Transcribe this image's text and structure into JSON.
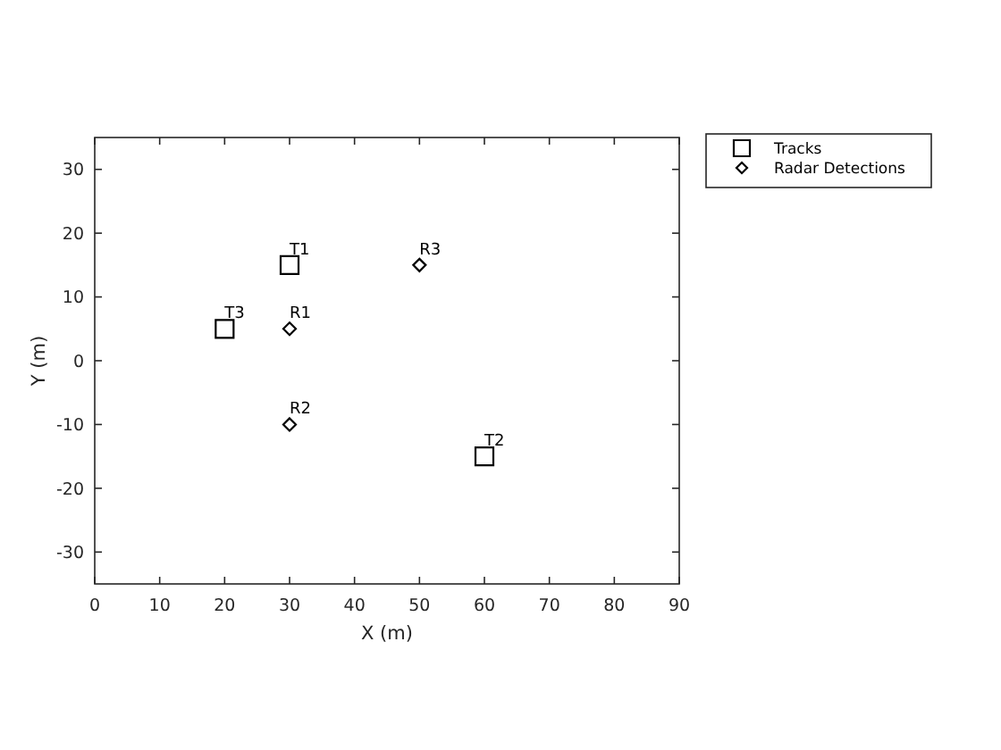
{
  "chart_data": {
    "type": "scatter",
    "xlabel": "X (m)",
    "ylabel": "Y (m)",
    "xlim": [
      0,
      90
    ],
    "xticks": [
      0,
      10,
      20,
      30,
      40,
      50,
      60,
      70,
      80,
      90
    ],
    "ylim": [
      -35,
      35
    ],
    "yticks": [
      -30,
      -20,
      -10,
      0,
      10,
      20,
      30
    ],
    "grid": false,
    "legend": "top right",
    "series": [
      {
        "name": "Tracks",
        "color": "#000000",
        "marker": "square",
        "x": [
          30,
          60,
          20
        ],
        "values": [
          15,
          -15,
          5
        ]
      },
      {
        "name": "Radar Detections",
        "color": "#000000",
        "marker": "diamond",
        "x": [
          30,
          30,
          50
        ],
        "values": [
          5,
          -10,
          15
        ]
      }
    ],
    "annotations": [
      {
        "text": "T1",
        "x": 30,
        "y": 15
      },
      {
        "text": "T2",
        "x": 60,
        "y": -15
      },
      {
        "text": "T3",
        "x": 20,
        "y": 5
      },
      {
        "text": "R1",
        "x": 30,
        "y": 5
      },
      {
        "text": "R2",
        "x": 30,
        "y": -10
      },
      {
        "text": "R3",
        "x": 50,
        "y": 15
      }
    ]
  }
}
